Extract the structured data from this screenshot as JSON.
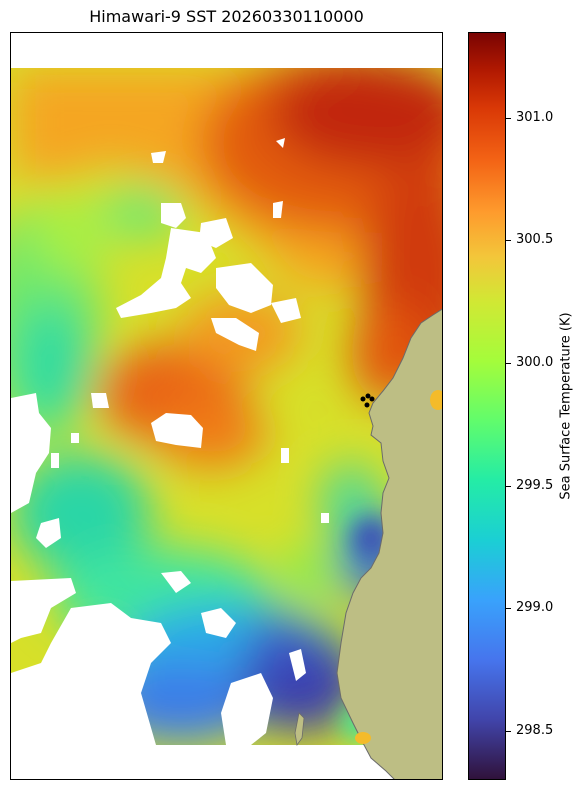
{
  "title": "Himawari-9 SST 20260330110000",
  "colorbar": {
    "label": "Sea Surface Temperature (K)",
    "min": 298.3,
    "max": 301.35,
    "ticks": [
      "298.5",
      "299.0",
      "299.5",
      "300.0",
      "300.5",
      "301.0"
    ],
    "colormap_name": "turbo"
  },
  "map": {
    "land_color": "#bdbe84",
    "missing_data_color": "#ffffff",
    "station_marker_color": "#000000",
    "station_marker_count": 4
  }
}
